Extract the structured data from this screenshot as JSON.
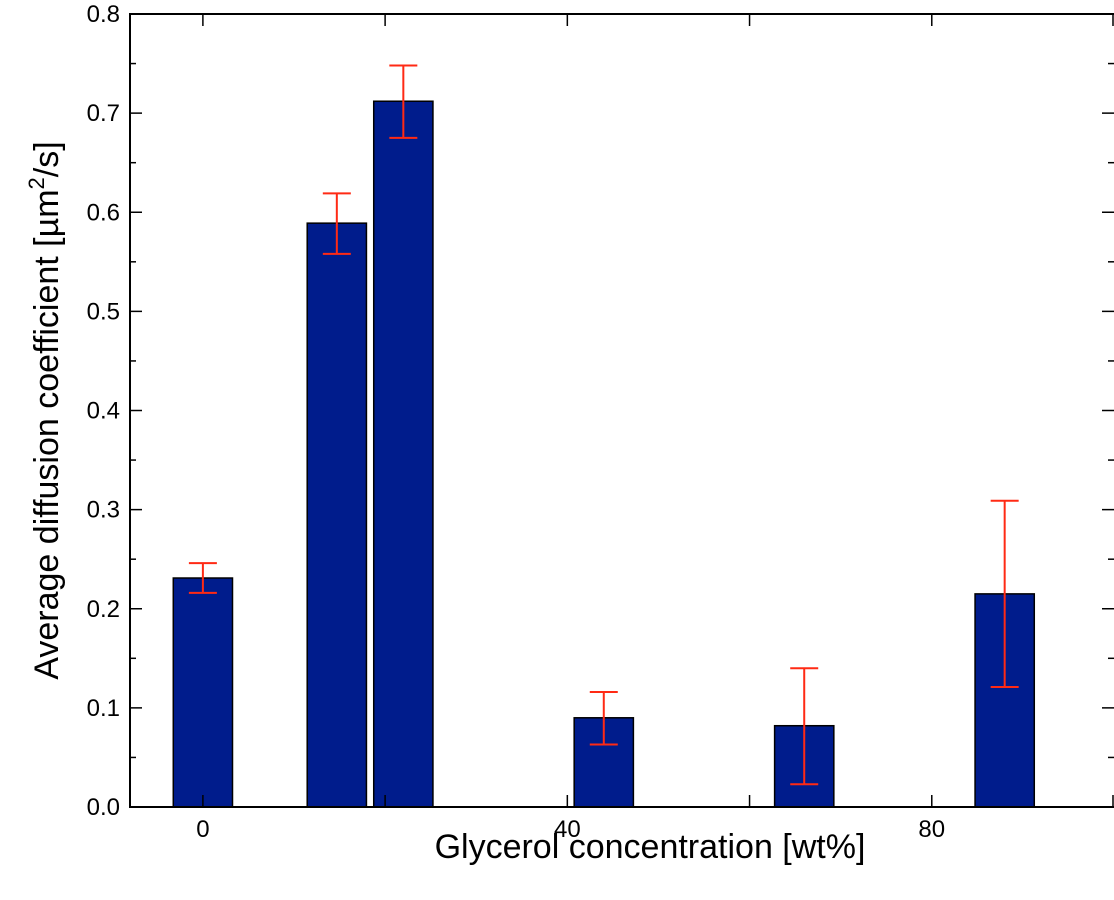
{
  "chart_data": {
    "type": "bar",
    "xlabel": "Glycerol concentration [wt%]",
    "ylabel_main": "Average diffusion coefficient [µm",
    "ylabel_sup": "2",
    "ylabel_end": "/s]",
    "xlim": [
      -8,
      100
    ],
    "ylim": [
      0,
      0.8
    ],
    "x_ticks_labeled": [
      0,
      40,
      80
    ],
    "x_ticks_minor": [
      20,
      60,
      100
    ],
    "x_tick_labels": [
      "0",
      "40",
      "80"
    ],
    "y_ticks": [
      0.0,
      0.1,
      0.2,
      0.3,
      0.4,
      0.5,
      0.6,
      0.7,
      0.8
    ],
    "y_tick_labels": [
      "0.0",
      "0.1",
      "0.2",
      "0.3",
      "0.4",
      "0.5",
      "0.6",
      "0.7",
      "0.8"
    ],
    "bar_width": 6.5,
    "bars": [
      {
        "x": 0,
        "value": 0.231,
        "err_low": 0.216,
        "err_high": 0.246
      },
      {
        "x": 14.7,
        "value": 0.589,
        "err_low": 0.558,
        "err_high": 0.619
      },
      {
        "x": 22.0,
        "value": 0.712,
        "err_low": 0.675,
        "err_high": 0.748
      },
      {
        "x": 44.0,
        "value": 0.09,
        "err_low": 0.063,
        "err_high": 0.116
      },
      {
        "x": 66.0,
        "value": 0.082,
        "err_low": 0.023,
        "err_high": 0.14
      },
      {
        "x": 88.0,
        "value": 0.215,
        "err_low": 0.121,
        "err_high": 0.309
      }
    ],
    "colors": {
      "bar_fill": "#001c8c",
      "bar_stroke": "#000000",
      "error_bar": "#ff2a14"
    },
    "grid": false
  }
}
